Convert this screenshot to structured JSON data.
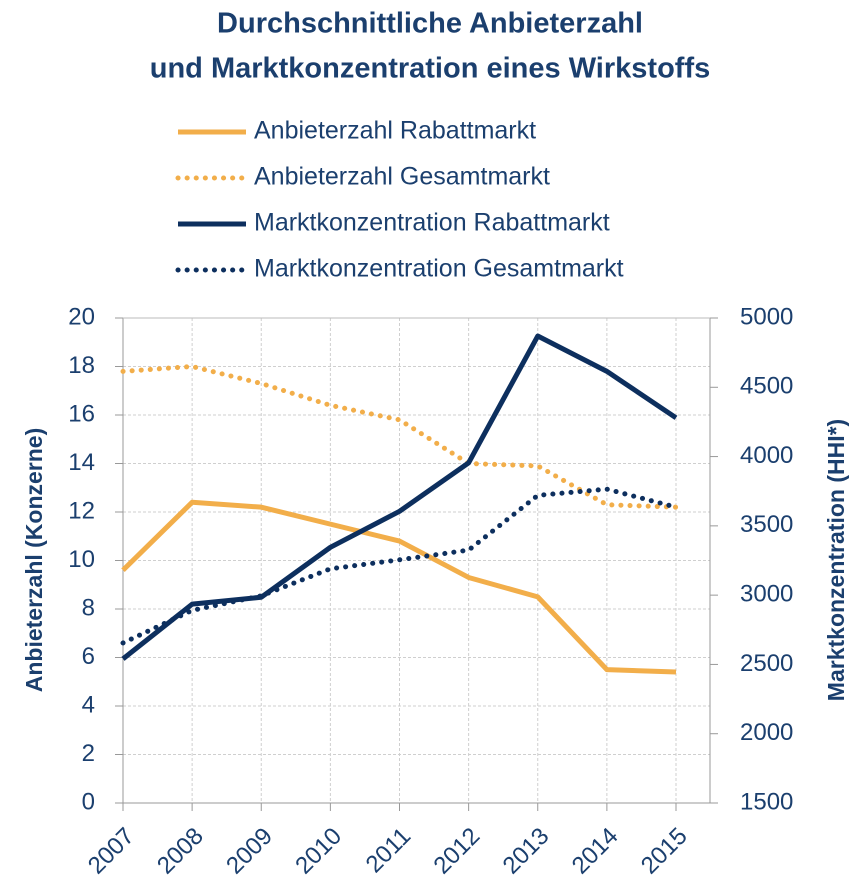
{
  "chart_data": {
    "type": "line",
    "title": [
      "Durchschnittliche Anbieterzahl",
      "und Marktkonzentration eines Wirkstoffs"
    ],
    "ylabel": "Anbieterzahl (Konzerne)",
    "y2label": "Marktkonzentration (HHI*)",
    "categories": [
      "2007",
      "2008",
      "2009",
      "2010",
      "2011",
      "2012",
      "2013",
      "2014",
      "2015"
    ],
    "ylim": [
      0,
      20
    ],
    "yticks": [
      0,
      2,
      4,
      6,
      8,
      10,
      12,
      14,
      16,
      18,
      20
    ],
    "y2lim": [
      1500,
      5000
    ],
    "y2ticks": [
      1500,
      2000,
      2500,
      3000,
      3500,
      4000,
      4500,
      5000
    ],
    "grid": true,
    "series": [
      {
        "name": "Anbieterzahl Rabattmarkt",
        "color": "#f2ae4a",
        "style": "solid",
        "values": [
          9.6,
          12.4,
          12.2,
          11.5,
          10.8,
          9.3,
          8.5,
          5.5,
          5.4
        ]
      },
      {
        "name": "Anbieterzahl Gesamtmarkt",
        "color": "#f2ae4a",
        "style": "dotted",
        "values": [
          17.8,
          18.0,
          17.3,
          16.4,
          15.8,
          14.0,
          13.9,
          12.3,
          12.2
        ]
      },
      {
        "name": "Marktkonzentration Rabattmarkt",
        "color": "#0d2f5e",
        "style": "solid",
        "axis": "y2",
        "values": [
          2540,
          2935,
          2985,
          3345,
          3605,
          3955,
          4870,
          4615,
          4280
        ]
      },
      {
        "name": "Marktkonzentration Gesamtmarkt",
        "color": "#0d2f5e",
        "style": "dotted",
        "axis": "y2",
        "values": [
          2655,
          2890,
          2995,
          3190,
          3255,
          3325,
          3720,
          3765,
          3635
        ]
      }
    ]
  }
}
